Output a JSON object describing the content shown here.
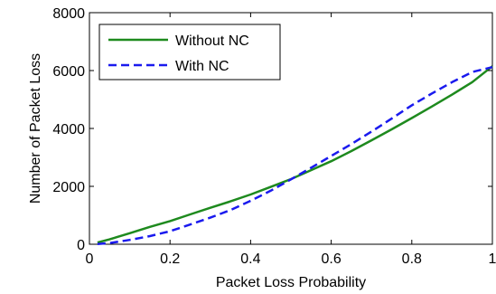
{
  "chart_data": {
    "type": "line",
    "title": "",
    "xlabel": "Packet Loss Probability",
    "ylabel": "Number of Packet Loss",
    "xlim": [
      0,
      1
    ],
    "ylim": [
      0,
      8000
    ],
    "x_ticks": [
      0,
      0.2,
      0.4,
      0.6,
      0.8,
      1
    ],
    "x_tick_labels": [
      "0",
      "0.2",
      "0.4",
      "0.6",
      "0.8",
      "1"
    ],
    "y_ticks": [
      0,
      2000,
      4000,
      6000,
      8000
    ],
    "y_tick_labels": [
      "0",
      "2000",
      "4000",
      "6000",
      "8000"
    ],
    "grid": false,
    "legend_position": "top-left",
    "x": [
      0.02,
      0.05,
      0.1,
      0.15,
      0.2,
      0.25,
      0.3,
      0.35,
      0.4,
      0.45,
      0.5,
      0.55,
      0.6,
      0.65,
      0.7,
      0.75,
      0.8,
      0.85,
      0.9,
      0.95,
      1.0
    ],
    "series": [
      {
        "name": "Without NC",
        "color": "#1e8a1e",
        "dash": "solid",
        "values": [
          60,
          170,
          380,
          600,
          800,
          1030,
          1260,
          1480,
          1720,
          1980,
          2250,
          2560,
          2870,
          3220,
          3590,
          3970,
          4360,
          4760,
          5170,
          5600,
          6150
        ]
      },
      {
        "name": "With NC",
        "color": "#1a1aee",
        "dash": "dashed",
        "values": [
          10,
          40,
          150,
          280,
          450,
          680,
          920,
          1180,
          1500,
          1850,
          2240,
          2640,
          3050,
          3460,
          3890,
          4340,
          4800,
          5210,
          5600,
          5950,
          6120
        ]
      }
    ]
  }
}
